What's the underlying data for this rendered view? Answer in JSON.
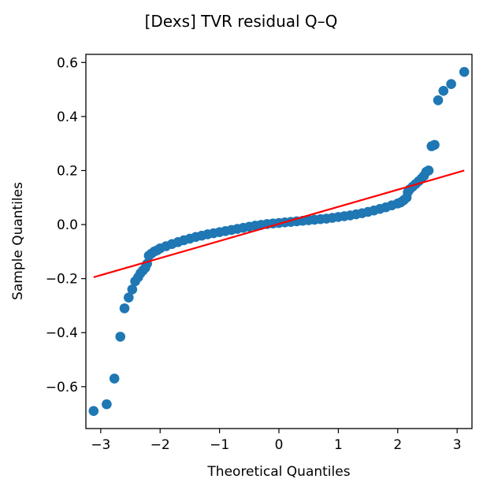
{
  "chart_data": {
    "type": "scatter",
    "title": "[Dexs] TVR residual Q–Q",
    "xlabel": "Theoretical Quantiles",
    "ylabel": "Sample Quantiles",
    "xlim": [
      -3.25,
      3.25
    ],
    "ylim": [
      -0.755,
      0.63
    ],
    "xticks": [
      -3,
      -2,
      -1,
      0,
      1,
      2,
      3
    ],
    "xtick_labels": [
      "−3",
      "−2",
      "−1",
      "0",
      "1",
      "2",
      "3"
    ],
    "yticks": [
      -0.6,
      -0.4,
      -0.2,
      0.0,
      0.2,
      0.4,
      0.6
    ],
    "ytick_labels": [
      "−0.6",
      "−0.4",
      "−0.2",
      "0.0",
      "0.2",
      "0.4",
      "0.6"
    ],
    "grid": false,
    "colors": {
      "points": "#1f77b4",
      "reference_line": "#ff0000"
    },
    "reference_line": {
      "x": [
        -3.12,
        3.12
      ],
      "y": [
        -0.195,
        0.2
      ]
    },
    "series": [
      {
        "points": [
          {
            "x": -3.12,
            "y": -0.69
          },
          {
            "x": -2.9,
            "y": -0.665
          },
          {
            "x": -2.77,
            "y": -0.57
          },
          {
            "x": -2.67,
            "y": -0.415
          },
          {
            "x": -2.6,
            "y": -0.31
          },
          {
            "x": -2.53,
            "y": -0.27
          },
          {
            "x": -2.47,
            "y": -0.24
          },
          {
            "x": -2.42,
            "y": -0.21
          },
          {
            "x": -2.37,
            "y": -0.195
          },
          {
            "x": -2.33,
            "y": -0.18
          },
          {
            "x": -2.29,
            "y": -0.17
          },
          {
            "x": -2.25,
            "y": -0.16
          },
          {
            "x": -2.22,
            "y": -0.145
          },
          {
            "x": -2.19,
            "y": -0.115
          },
          {
            "x": -2.15,
            "y": -0.108
          },
          {
            "x": -2.1,
            "y": -0.1
          },
          {
            "x": -2.05,
            "y": -0.095
          },
          {
            "x": -2.0,
            "y": -0.088
          },
          {
            "x": -1.9,
            "y": -0.08
          },
          {
            "x": -1.8,
            "y": -0.072
          },
          {
            "x": -1.7,
            "y": -0.065
          },
          {
            "x": -1.6,
            "y": -0.058
          },
          {
            "x": -1.5,
            "y": -0.052
          },
          {
            "x": -1.4,
            "y": -0.046
          },
          {
            "x": -1.3,
            "y": -0.041
          },
          {
            "x": -1.2,
            "y": -0.036
          },
          {
            "x": -1.1,
            "y": -0.032
          },
          {
            "x": -1.0,
            "y": -0.028
          },
          {
            "x": -0.9,
            "y": -0.024
          },
          {
            "x": -0.8,
            "y": -0.02
          },
          {
            "x": -0.7,
            "y": -0.016
          },
          {
            "x": -0.6,
            "y": -0.012
          },
          {
            "x": -0.5,
            "y": -0.008
          },
          {
            "x": -0.4,
            "y": -0.004
          },
          {
            "x": -0.3,
            "y": -0.001
          },
          {
            "x": -0.2,
            "y": 0.002
          },
          {
            "x": -0.1,
            "y": 0.004
          },
          {
            "x": 0.0,
            "y": 0.006
          },
          {
            "x": 0.1,
            "y": 0.008
          },
          {
            "x": 0.2,
            "y": 0.01
          },
          {
            "x": 0.3,
            "y": 0.012
          },
          {
            "x": 0.4,
            "y": 0.014
          },
          {
            "x": 0.5,
            "y": 0.016
          },
          {
            "x": 0.6,
            "y": 0.018
          },
          {
            "x": 0.7,
            "y": 0.02
          },
          {
            "x": 0.8,
            "y": 0.022
          },
          {
            "x": 0.9,
            "y": 0.025
          },
          {
            "x": 1.0,
            "y": 0.028
          },
          {
            "x": 1.1,
            "y": 0.031
          },
          {
            "x": 1.2,
            "y": 0.034
          },
          {
            "x": 1.3,
            "y": 0.038
          },
          {
            "x": 1.4,
            "y": 0.042
          },
          {
            "x": 1.5,
            "y": 0.047
          },
          {
            "x": 1.6,
            "y": 0.052
          },
          {
            "x": 1.7,
            "y": 0.058
          },
          {
            "x": 1.8,
            "y": 0.064
          },
          {
            "x": 1.9,
            "y": 0.071
          },
          {
            "x": 2.0,
            "y": 0.078
          },
          {
            "x": 2.05,
            "y": 0.082
          },
          {
            "x": 2.1,
            "y": 0.09
          },
          {
            "x": 2.15,
            "y": 0.1
          },
          {
            "x": 2.17,
            "y": 0.12
          },
          {
            "x": 2.2,
            "y": 0.13
          },
          {
            "x": 2.25,
            "y": 0.14
          },
          {
            "x": 2.3,
            "y": 0.15
          },
          {
            "x": 2.35,
            "y": 0.16
          },
          {
            "x": 2.4,
            "y": 0.17
          },
          {
            "x": 2.44,
            "y": 0.18
          },
          {
            "x": 2.48,
            "y": 0.195
          },
          {
            "x": 2.52,
            "y": 0.2
          },
          {
            "x": 2.57,
            "y": 0.29
          },
          {
            "x": 2.62,
            "y": 0.295
          },
          {
            "x": 2.68,
            "y": 0.46
          },
          {
            "x": 2.77,
            "y": 0.495
          },
          {
            "x": 2.9,
            "y": 0.52
          },
          {
            "x": 3.12,
            "y": 0.565
          }
        ]
      }
    ]
  }
}
